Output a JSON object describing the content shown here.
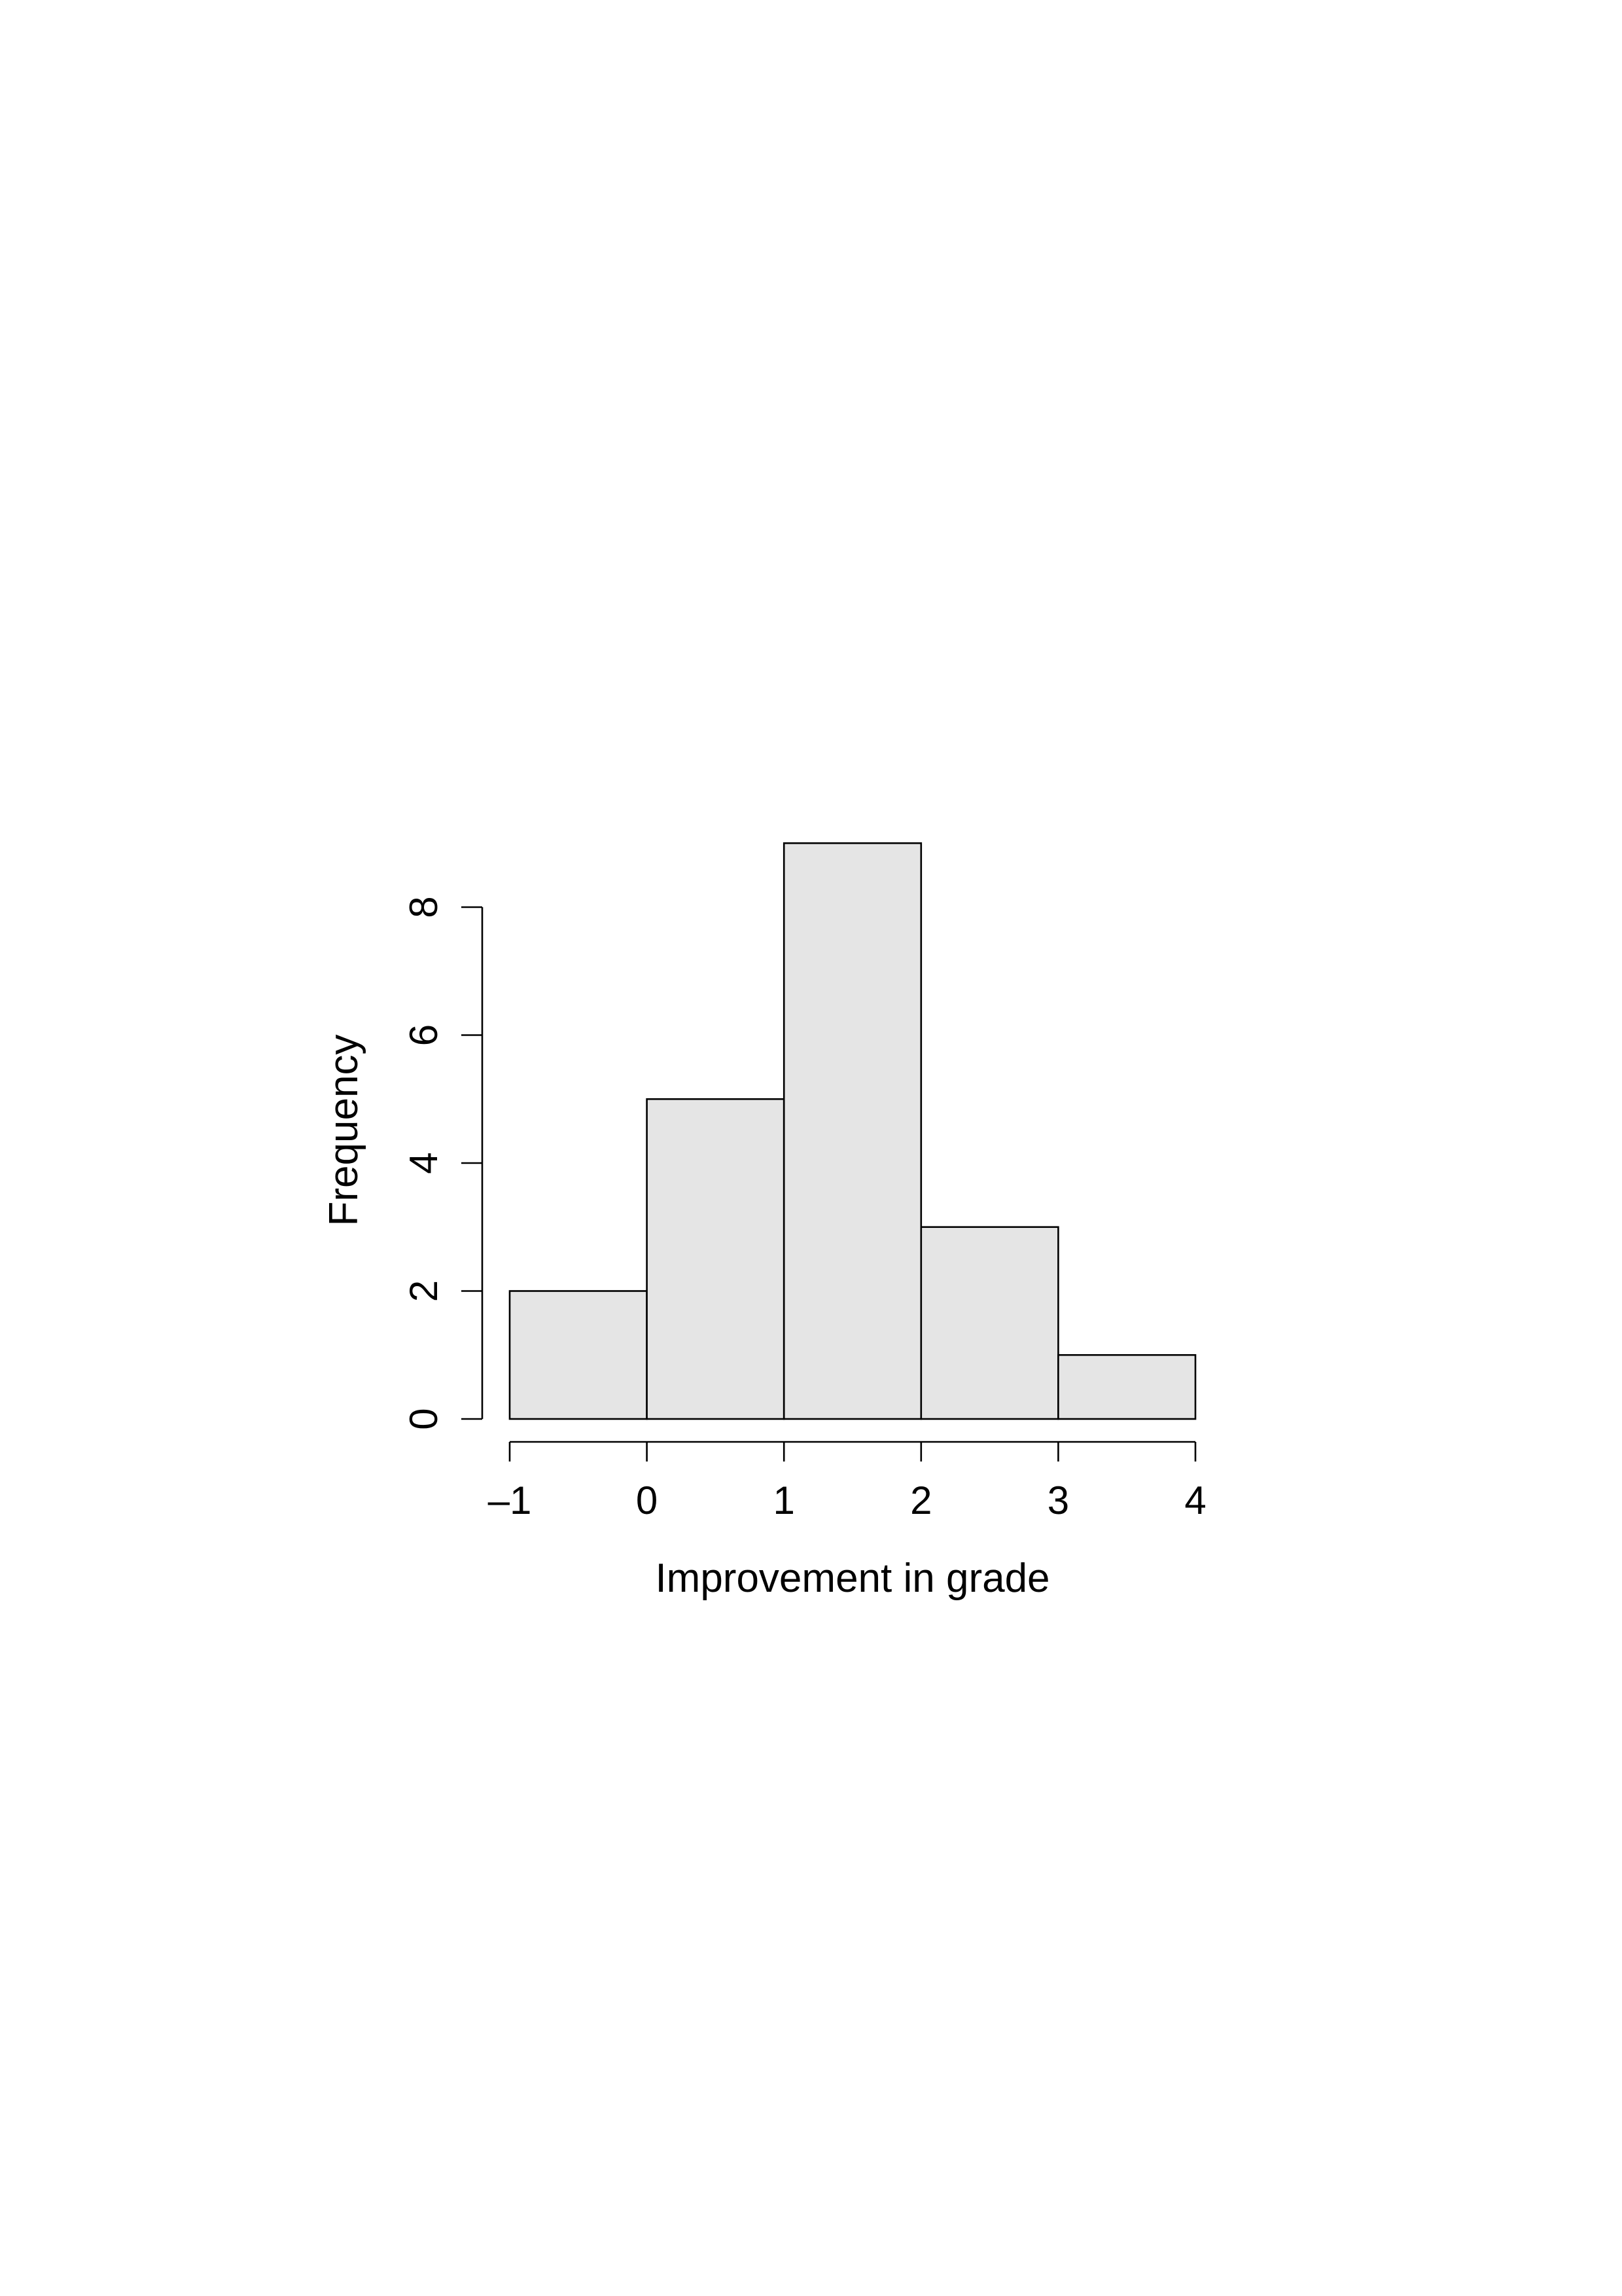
{
  "chart_data": {
    "type": "bar",
    "subtype": "histogram",
    "bins": [
      {
        "from": -1,
        "to": 0,
        "count": 2
      },
      {
        "from": 0,
        "to": 1,
        "count": 5
      },
      {
        "from": 1,
        "to": 2,
        "count": 9
      },
      {
        "from": 2,
        "to": 3,
        "count": 3
      },
      {
        "from": 3,
        "to": 4,
        "count": 1
      }
    ],
    "x_ticks": [
      {
        "value": -1,
        "label": "–1"
      },
      {
        "value": 0,
        "label": "0"
      },
      {
        "value": 1,
        "label": "1"
      },
      {
        "value": 2,
        "label": "2"
      },
      {
        "value": 3,
        "label": "3"
      },
      {
        "value": 4,
        "label": "4"
      }
    ],
    "y_ticks": [
      {
        "value": 0,
        "label": "0"
      },
      {
        "value": 2,
        "label": "2"
      },
      {
        "value": 4,
        "label": "4"
      },
      {
        "value": 6,
        "label": "6"
      },
      {
        "value": 8,
        "label": "8"
      }
    ],
    "xlabel": "Improvement in grade",
    "ylabel": "Frequency",
    "xlim": [
      -1,
      4
    ],
    "ylim": [
      0,
      8
    ],
    "grid": false,
    "bar_color": "#e5e5e5",
    "edge_color": "#000000"
  }
}
